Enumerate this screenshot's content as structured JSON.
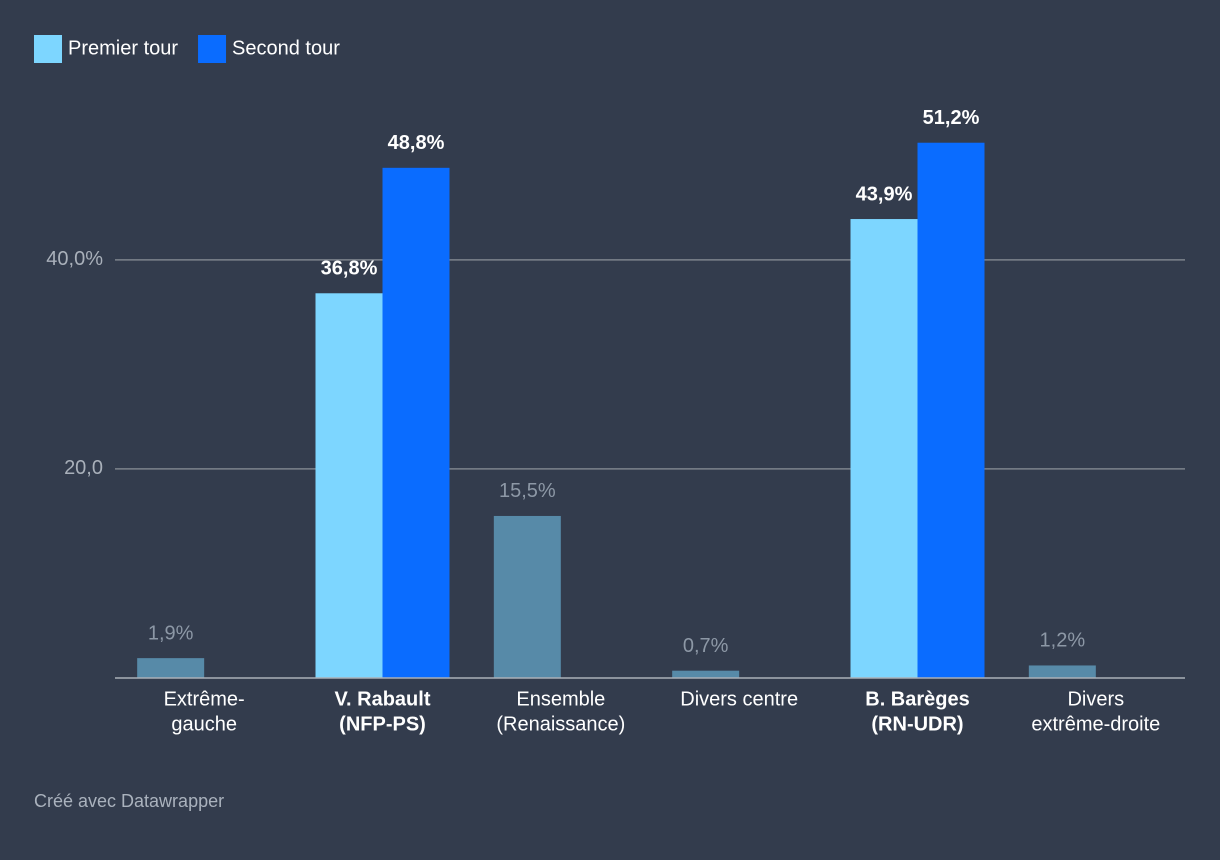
{
  "chart_data": {
    "type": "bar",
    "categories": [
      [
        "Extrême-",
        "gauche"
      ],
      [
        "V. Rabault",
        "(NFP-PS)"
      ],
      [
        "Ensemble",
        "(Renaissance)"
      ],
      [
        "Divers centre"
      ],
      [
        "B. Barèges",
        "(RN-UDR)"
      ],
      [
        "Divers",
        "extrême-droite"
      ]
    ],
    "series": [
      {
        "name": "Premier tour",
        "color": "#7dd6ff",
        "muted_color": "#578aa8",
        "values": [
          1.9,
          36.8,
          15.5,
          0.7,
          43.9,
          1.2
        ],
        "value_labels": [
          "1,9%",
          "36,8%",
          "15,5%",
          "0,7%",
          "43,9%",
          "1,2%"
        ]
      },
      {
        "name": "Second tour",
        "color": "#0a6cff",
        "values": [
          null,
          48.8,
          null,
          null,
          51.2,
          null
        ],
        "value_labels": [
          null,
          "48,8%",
          null,
          null,
          "51,2%",
          null
        ]
      }
    ],
    "ylim": [
      0,
      55
    ],
    "yticks": [
      {
        "value": 20,
        "label": "20,0"
      },
      {
        "value": 40,
        "label": "40,0%"
      }
    ],
    "grid": true,
    "legend": "top-left",
    "footer": "Créé avec Datawrapper"
  }
}
